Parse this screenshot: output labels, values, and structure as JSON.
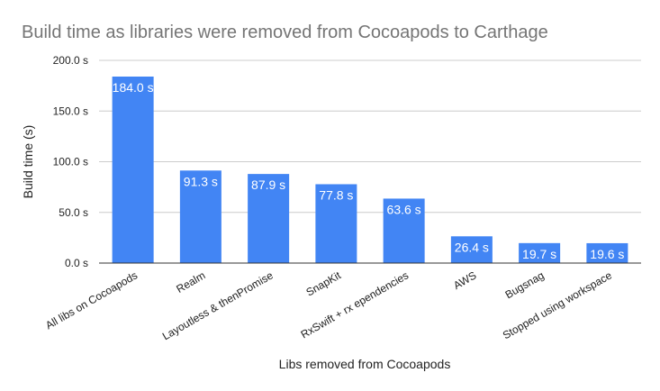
{
  "chart_data": {
    "type": "bar",
    "title": "Build time as libraries were removed from Cocoapods to Carthage",
    "xlabel": "Libs removed from Cocoapods",
    "ylabel": "Build time (s)",
    "categories": [
      "All libs on Cocoapods",
      "Realm",
      "Layoutless & thenPromise",
      "SnapKit",
      "RxSwift + rx ependencies",
      "AWS",
      "Bugsnag",
      "Stopped using workspace"
    ],
    "values": [
      184.0,
      91.3,
      87.9,
      77.8,
      63.6,
      26.4,
      19.7,
      19.6
    ],
    "data_labels": [
      "184.0 s",
      "91.3 s",
      "87.9 s",
      "77.8 s",
      "63.6 s",
      "26.4 s",
      "19.7 s",
      "19.6 s"
    ],
    "y_ticks": [
      {
        "value": 0,
        "label": "0.0 s"
      },
      {
        "value": 50,
        "label": "50.0 s"
      },
      {
        "value": 100,
        "label": "100.0 s"
      },
      {
        "value": 150,
        "label": "150.0 s"
      },
      {
        "value": 200,
        "label": "200.0 s"
      }
    ],
    "ylim": [
      0,
      200
    ],
    "grid": true,
    "legend": "none",
    "colors": {
      "bar": "#4285f4",
      "label_inside": "#ffffff",
      "label_outside": "#4285f4",
      "grid": "#cccccc",
      "axis": "#333333"
    }
  }
}
